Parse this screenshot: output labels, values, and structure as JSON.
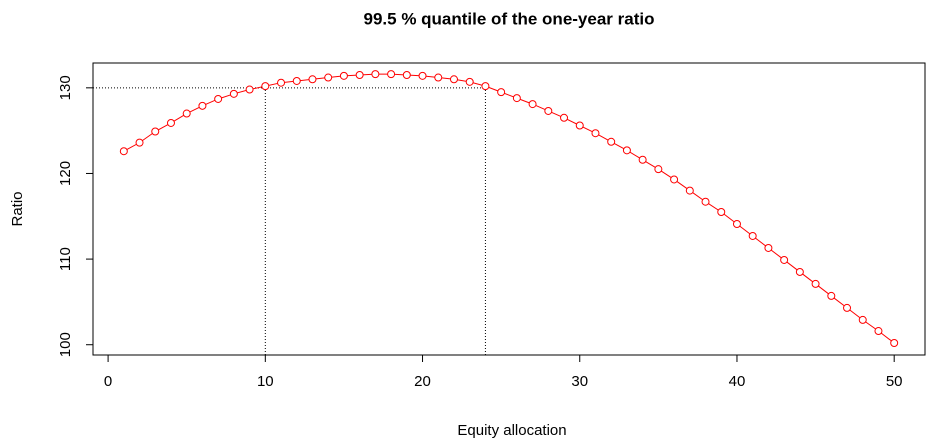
{
  "chart_data": {
    "type": "line",
    "title": "99.5 % quantile of the one-year ratio",
    "x_label": "Equity allocation",
    "y_label": "Ratio",
    "x": [
      1,
      2,
      3,
      4,
      5,
      6,
      7,
      8,
      9,
      10,
      11,
      12,
      13,
      14,
      15,
      16,
      17,
      18,
      19,
      20,
      21,
      22,
      23,
      24,
      25,
      26,
      27,
      28,
      29,
      30,
      31,
      32,
      33,
      34,
      35,
      36,
      37,
      38,
      39,
      40,
      41,
      42,
      43,
      44,
      45,
      46,
      47,
      48,
      49,
      50
    ],
    "series": [
      {
        "name": "Ratio",
        "color": "#ff0000",
        "values": [
          122.6,
          123.6,
          124.9,
          125.9,
          127.0,
          127.9,
          128.7,
          129.3,
          129.8,
          130.2,
          130.6,
          130.8,
          131.0,
          131.2,
          131.4,
          131.5,
          131.6,
          131.6,
          131.5,
          131.4,
          131.2,
          131.0,
          130.7,
          130.2,
          129.5,
          128.8,
          128.1,
          127.3,
          126.5,
          125.6,
          124.7,
          123.7,
          122.7,
          121.6,
          120.5,
          119.3,
          118.0,
          116.7,
          115.5,
          114.1,
          112.7,
          111.3,
          109.9,
          108.5,
          107.1,
          105.7,
          104.3,
          102.9,
          101.6,
          100.2
        ]
      }
    ],
    "reference": {
      "y": 130,
      "x": [
        10,
        24
      ]
    },
    "xlim": [
      -0.96,
      51.96
    ],
    "ylim": [
      98.8,
      132.9
    ],
    "xticks": [
      0,
      10,
      20,
      30,
      40,
      50
    ],
    "yticks": [
      100,
      110,
      120,
      130
    ]
  }
}
